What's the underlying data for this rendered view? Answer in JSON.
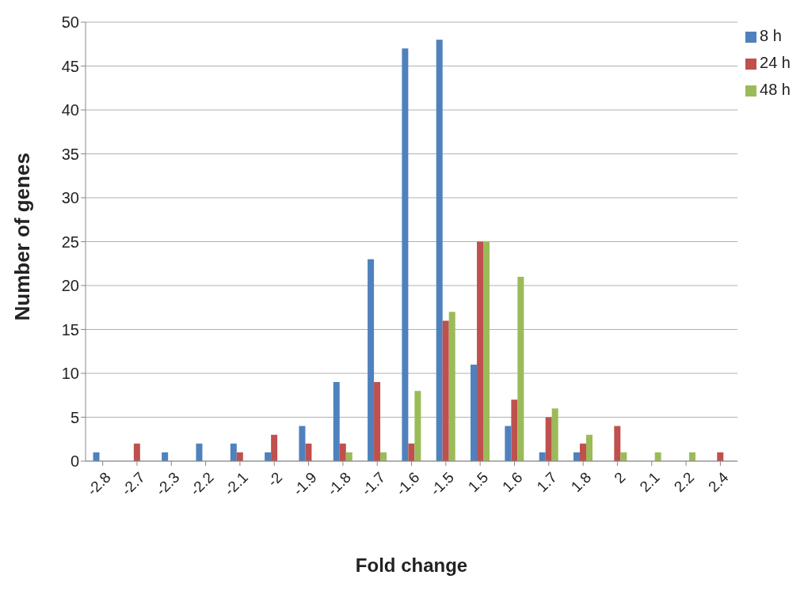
{
  "chart_data": {
    "type": "bar",
    "xlabel": "Fold change",
    "ylabel": "Number of genes",
    "categories": [
      "-2.8",
      "-2.7",
      "-2.3",
      "-2.2",
      "-2.1",
      "-2",
      "-1.9",
      "-1.8",
      "-1.7",
      "-1.6",
      "-1.5",
      "1.5",
      "1.6",
      "1.7",
      "1.8",
      "2",
      "2.1",
      "2.2",
      "2.4"
    ],
    "series": [
      {
        "name": "8 h",
        "color": "#4f81bd",
        "values": [
          1,
          0,
          1,
          2,
          2,
          1,
          4,
          9,
          23,
          47,
          48,
          11,
          4,
          1,
          1,
          0,
          0,
          0,
          0
        ]
      },
      {
        "name": "24 h",
        "color": "#c0504d",
        "values": [
          0,
          2,
          0,
          0,
          1,
          3,
          2,
          2,
          9,
          2,
          16,
          25,
          7,
          5,
          2,
          4,
          0,
          0,
          1
        ]
      },
      {
        "name": "48 h",
        "color": "#9bbb59",
        "values": [
          0,
          0,
          0,
          0,
          0,
          0,
          0,
          1,
          1,
          8,
          17,
          25,
          21,
          6,
          3,
          1,
          1,
          1,
          0
        ]
      }
    ],
    "ylim": [
      0,
      50
    ],
    "yticks": [
      0,
      5,
      10,
      15,
      20,
      25,
      30,
      35,
      40,
      45,
      50
    ],
    "grid": "y",
    "legend": "top right"
  }
}
